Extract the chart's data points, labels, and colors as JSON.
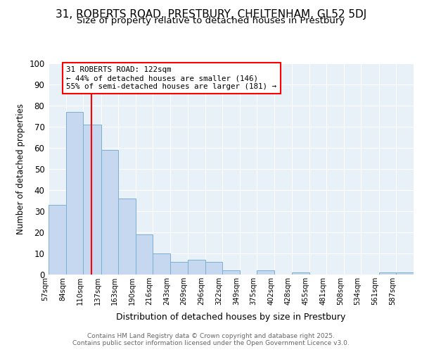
{
  "title1": "31, ROBERTS ROAD, PRESTBURY, CHELTENHAM, GL52 5DJ",
  "title2": "Size of property relative to detached houses in Prestbury",
  "xlabel": "Distribution of detached houses by size in Prestbury",
  "ylabel": "Number of detached properties",
  "bin_labels": [
    "57sqm",
    "84sqm",
    "110sqm",
    "137sqm",
    "163sqm",
    "190sqm",
    "216sqm",
    "243sqm",
    "269sqm",
    "296sqm",
    "322sqm",
    "349sqm",
    "375sqm",
    "402sqm",
    "428sqm",
    "455sqm",
    "481sqm",
    "508sqm",
    "534sqm",
    "561sqm",
    "587sqm"
  ],
  "bin_edges": [
    57,
    84,
    110,
    137,
    163,
    190,
    216,
    243,
    269,
    296,
    322,
    349,
    375,
    402,
    428,
    455,
    481,
    508,
    534,
    561,
    587,
    614
  ],
  "bar_heights": [
    33,
    77,
    71,
    59,
    36,
    19,
    10,
    6,
    7,
    6,
    2,
    0,
    2,
    0,
    1,
    0,
    0,
    0,
    0,
    1,
    1
  ],
  "bar_color": "#c5d8f0",
  "bar_edge_color": "#7bafd4",
  "red_line_x": 122,
  "annotation_text": "31 ROBERTS ROAD: 122sqm\n← 44% of detached houses are smaller (146)\n55% of semi-detached houses are larger (181) →",
  "annotation_box_color": "white",
  "annotation_box_edge_color": "red",
  "ylim": [
    0,
    100
  ],
  "yticks": [
    0,
    10,
    20,
    30,
    40,
    50,
    60,
    70,
    80,
    90,
    100
  ],
  "footer1": "Contains HM Land Registry data © Crown copyright and database right 2025.",
  "footer2": "Contains public sector information licensed under the Open Government Licence v3.0.",
  "fig_bg_color": "#ffffff",
  "plot_bg_color": "#e8f0f8",
  "grid_color": "#ffffff",
  "title_fontsize": 11,
  "subtitle_fontsize": 9.5
}
